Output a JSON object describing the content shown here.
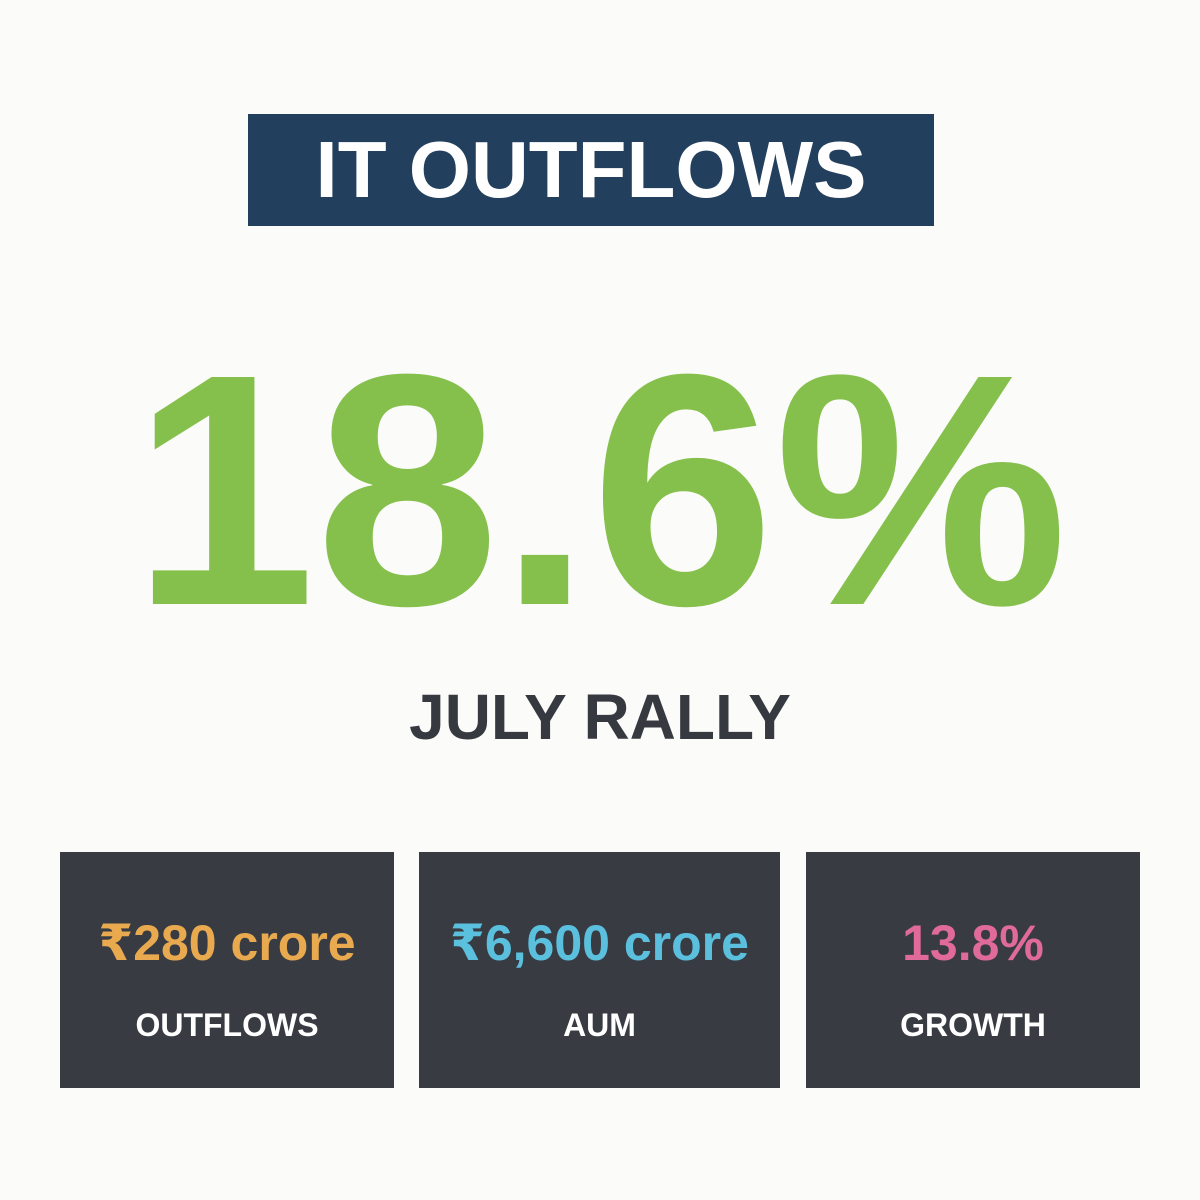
{
  "header": {
    "title": "IT OUTFLOWS"
  },
  "hero": {
    "value": "18.6%",
    "label": "JULY RALLY"
  },
  "stats": [
    {
      "value": "₹280 crore",
      "label": "OUTFLOWS",
      "color": "#e8a94f"
    },
    {
      "value": "₹6,600 crore",
      "label": "AUM",
      "color": "#5bc0de"
    },
    {
      "value": "13.8%",
      "label": "GROWTH",
      "color": "#e06a9a"
    }
  ]
}
